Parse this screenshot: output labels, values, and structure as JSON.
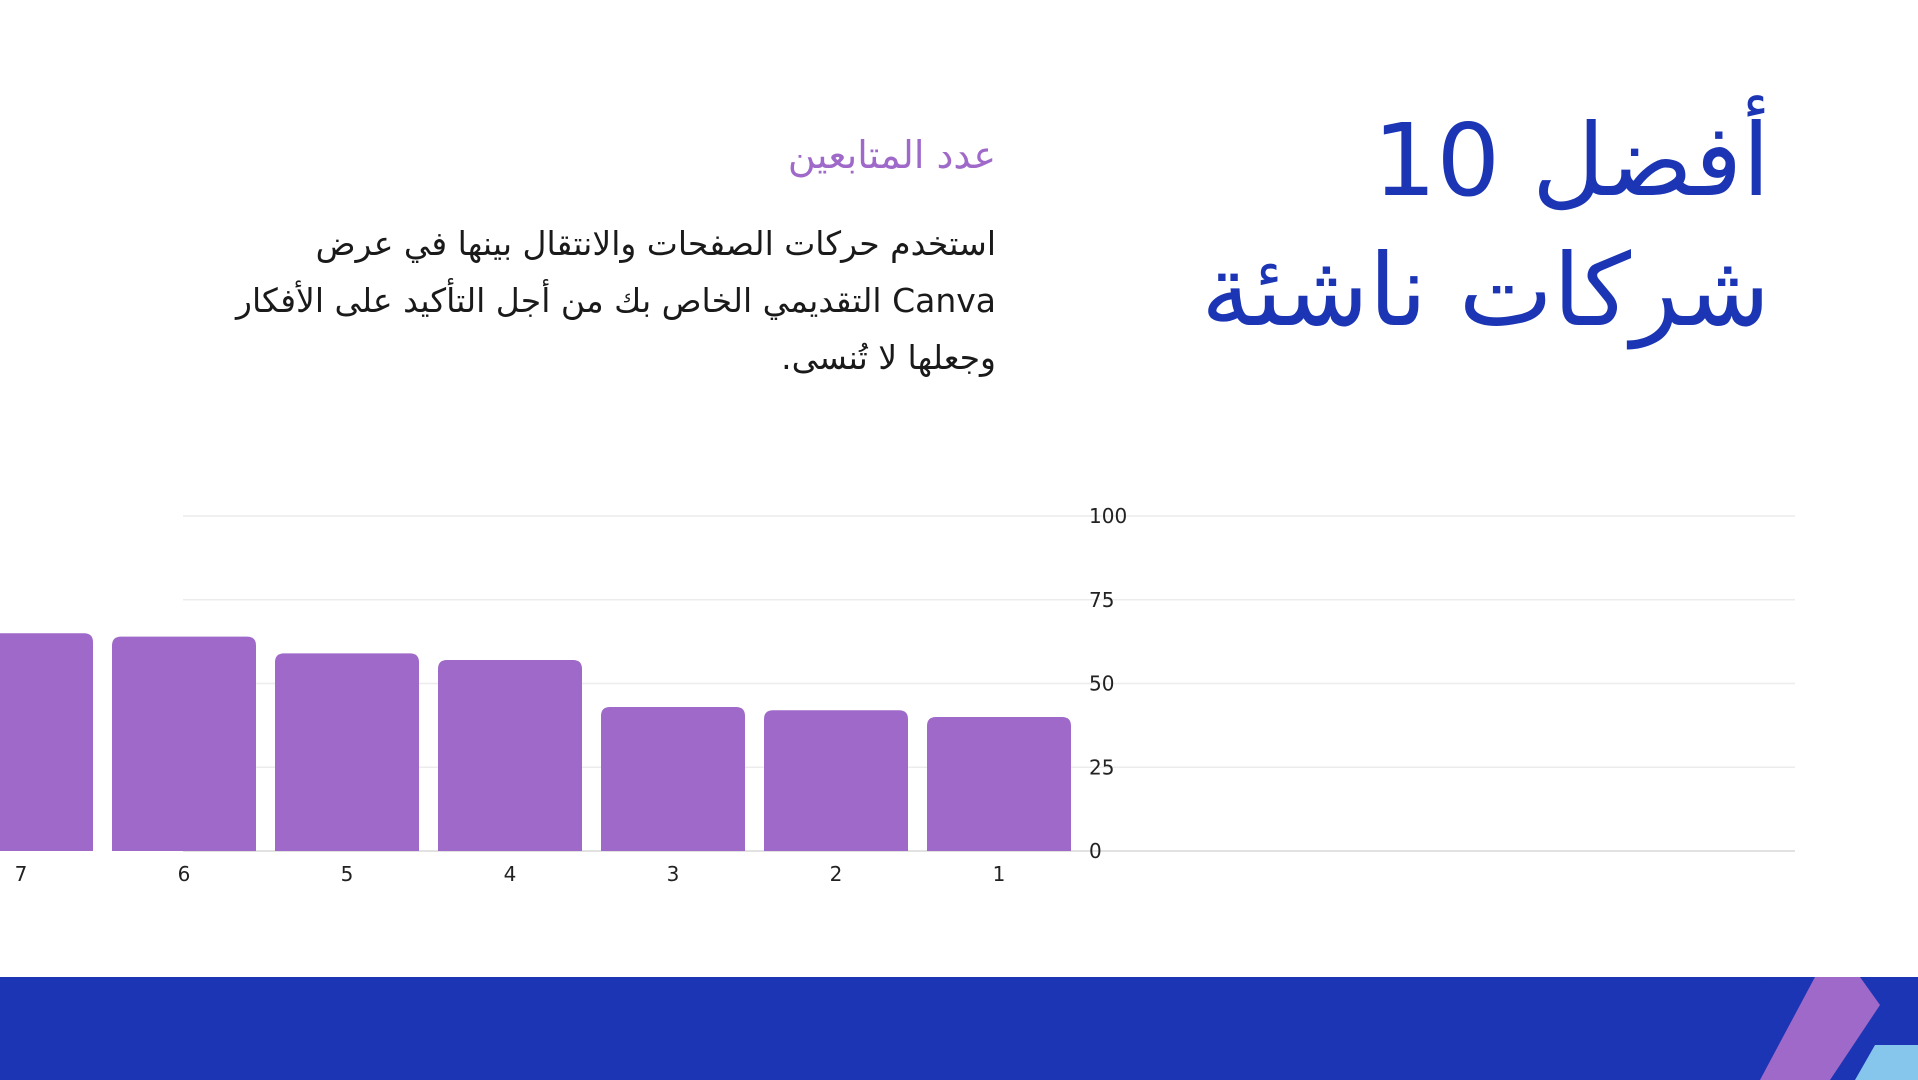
{
  "slide": {
    "title_line1": "أفضل 10",
    "title_line2": "شركات ناشئة",
    "subtitle": "عدد المتابعين",
    "body_line1": "استخدم حركات الصفحات والانتقال بينها في عرض",
    "body_line2": "Canva التقديمي الخاص بك من أجل التأكيد على الأفكار",
    "body_line3": "وجعلها لا تُنسى."
  },
  "colors": {
    "primary_blue": "#1b35b4",
    "purple": "#9f69c9",
    "light_blue": "#86c5ec"
  },
  "chart_data": {
    "type": "bar",
    "orientation": "right-to-left",
    "categories": [
      "1",
      "2",
      "3",
      "4",
      "5",
      "6",
      "7"
    ],
    "values": [
      40,
      42,
      43,
      57,
      59,
      64,
      65
    ],
    "yticks": [
      "0",
      "25",
      "50",
      "75",
      "100"
    ],
    "ylim": [
      0,
      100
    ],
    "grid": true,
    "y_axis_side": "right",
    "bar_color": "#9f69c9"
  }
}
